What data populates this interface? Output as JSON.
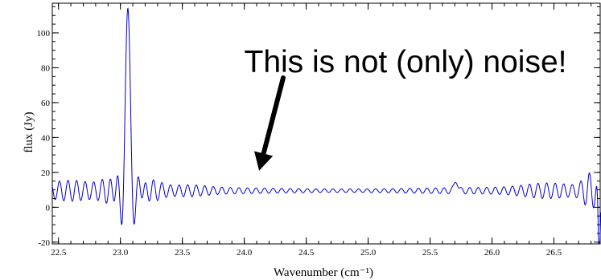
{
  "chart_data": {
    "type": "line",
    "xlabel": "Wavenumber (cm⁻¹)",
    "ylabel": "flux (Jy)",
    "xlim": [
      22.45,
      26.88
    ],
    "ylim": [
      -21,
      117
    ],
    "xticks": [
      "22.5",
      "23.0",
      "23.5",
      "24.0",
      "24.5",
      "25.0",
      "25.5",
      "26.0",
      "26.5"
    ],
    "yticks": [
      "-20",
      "0",
      "20",
      "40",
      "60",
      "80",
      "100"
    ],
    "grid": false,
    "annotation": {
      "text": "This is not (only) noise!",
      "arrow_tip": [
        24.12,
        21
      ]
    },
    "series": [
      {
        "color": "#0000cc",
        "baseline": 9.5,
        "ripple_period_cm1": 0.069,
        "main_peak": {
          "x": 23.06,
          "y": 110
        },
        "side_features": [
          {
            "x": 22.98,
            "y": -11
          },
          {
            "x": 23.14,
            "y": -10
          },
          {
            "x": 23.16,
            "y": 21
          },
          {
            "x": 22.93,
            "y": 19
          },
          {
            "x": 25.71,
            "y": 17
          },
          {
            "x": 26.8,
            "y": 29
          },
          {
            "x": 26.86,
            "y": -20
          }
        ]
      }
    ]
  }
}
